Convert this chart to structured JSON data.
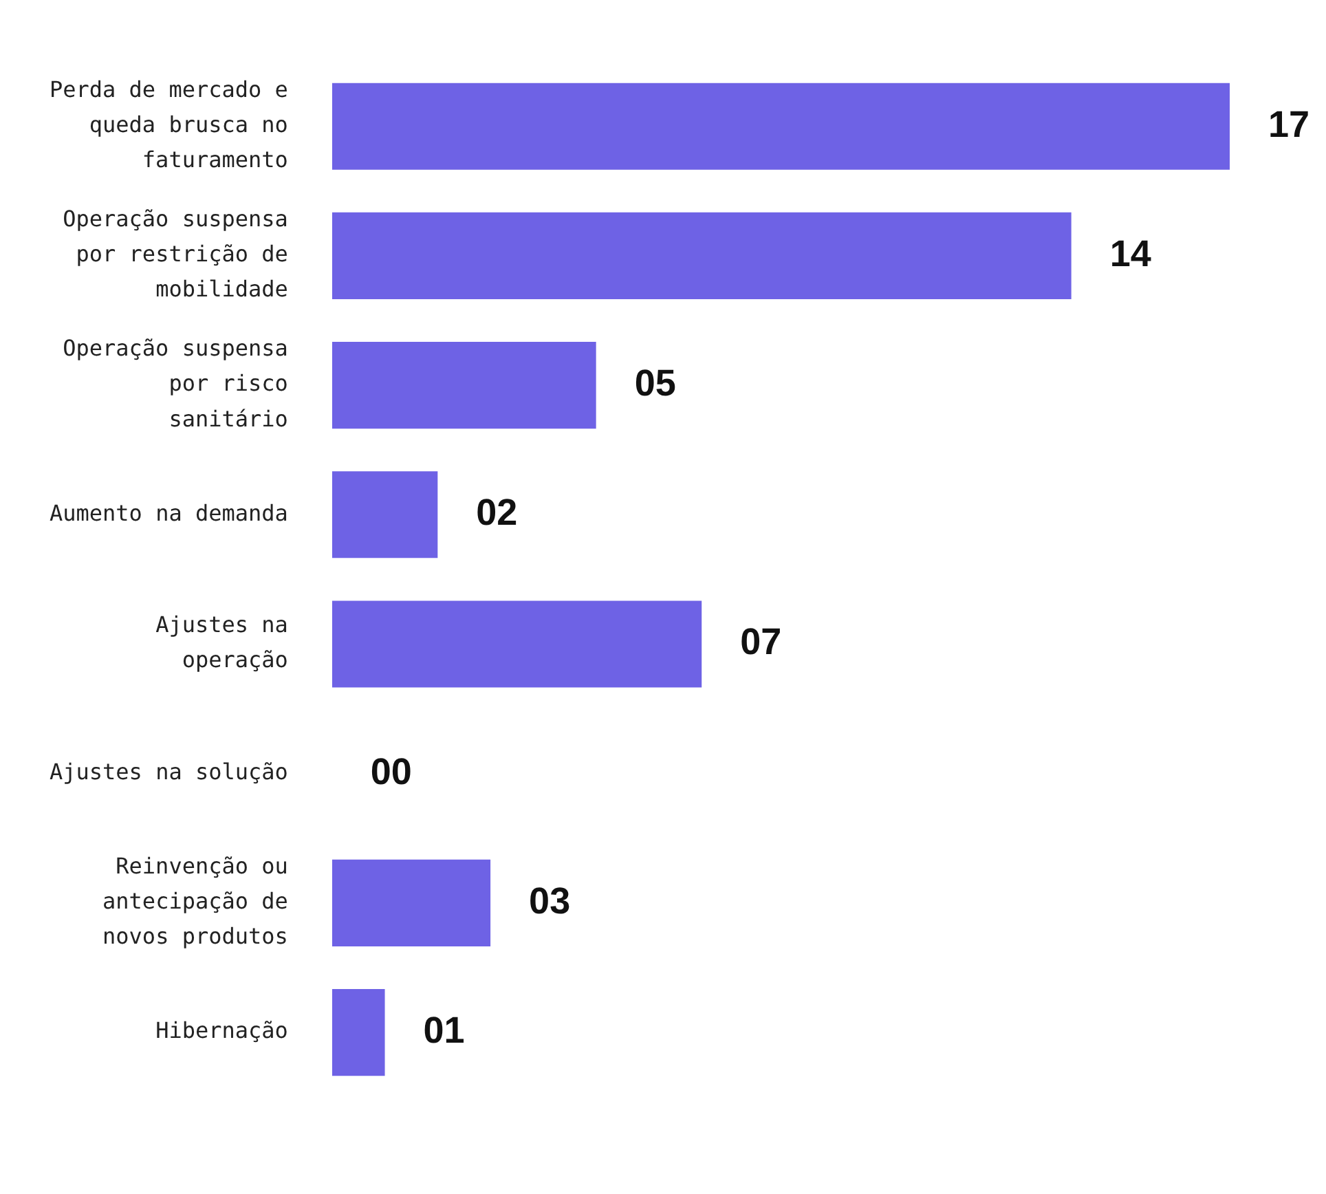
{
  "chart_data": {
    "type": "bar",
    "orientation": "horizontal",
    "categories": [
      "Perda de mercado e queda brusca no faturamento",
      "Operação suspensa por restrição de mobilidade",
      "Operação suspensa por risco sanitário",
      "Aumento na demanda",
      "Ajustes na operação",
      "Ajustes na solução",
      "Reinvenção ou antecipação de novos produtos",
      "Hibernação"
    ],
    "values": [
      17,
      14,
      5,
      2,
      7,
      0,
      3,
      1
    ],
    "value_labels": [
      "17",
      "14",
      "05",
      "02",
      "07",
      "00",
      "03",
      "01"
    ],
    "color": "#6e62e5",
    "tick_labels": "y"
  }
}
